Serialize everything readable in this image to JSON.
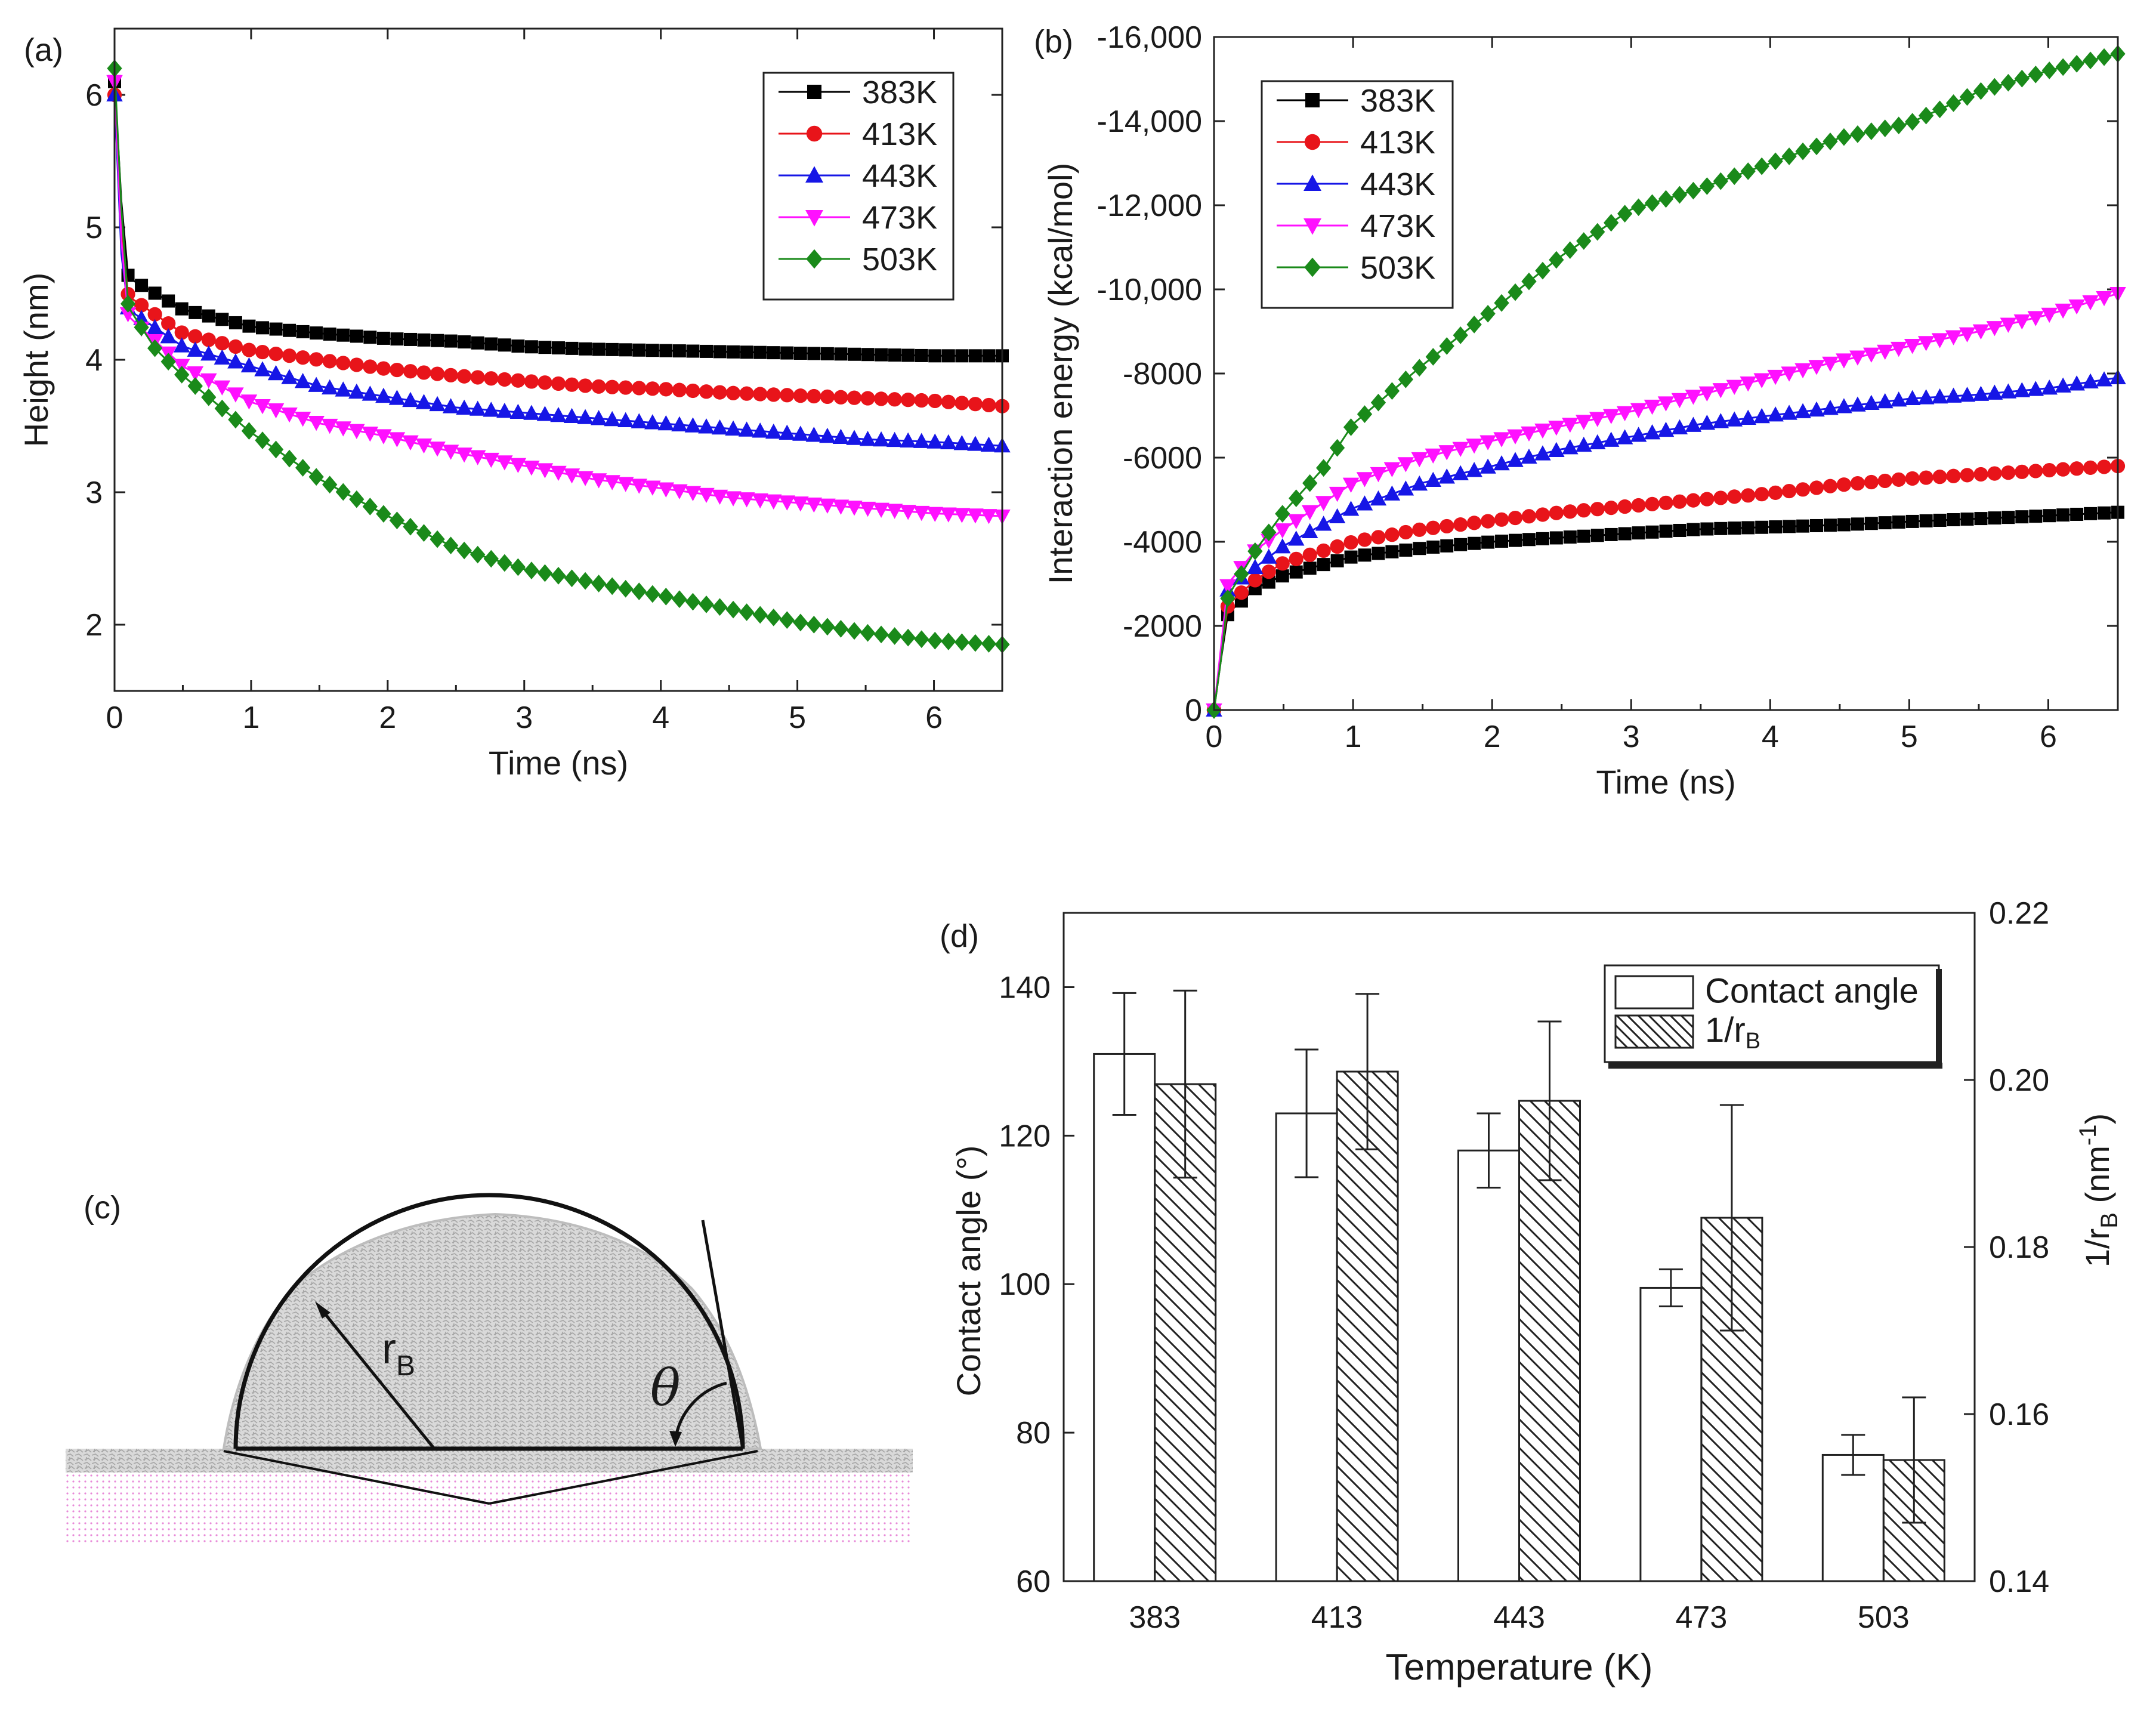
{
  "chart_data": [
    {
      "id": "a",
      "type": "line",
      "panel_label": "(a)",
      "xlabel": "Time (ns)",
      "ylabel": "Height (nm)",
      "xlim": [
        0,
        6.5
      ],
      "ylim": [
        1.5,
        6.5
      ],
      "xticks": [
        0,
        1,
        2,
        3,
        4,
        5,
        6
      ],
      "yticks": [
        2,
        3,
        4,
        5,
        6
      ],
      "legend": [
        "383K",
        "413K",
        "443K",
        "473K",
        "503K"
      ],
      "series": [
        {
          "name": "383K",
          "color": "#000000",
          "marker": "square",
          "x": [
            0,
            0.05,
            0.1,
            0.5,
            1,
            1.5,
            2,
            2.5,
            3,
            3.5,
            4,
            4.5,
            5,
            5.5,
            6,
            6.5
          ],
          "y": [
            6.1,
            5.2,
            4.62,
            4.38,
            4.25,
            4.2,
            4.16,
            4.14,
            4.1,
            4.08,
            4.07,
            4.06,
            4.05,
            4.04,
            4.03,
            4.03
          ]
        },
        {
          "name": "413K",
          "color": "#e8141a",
          "marker": "circle",
          "x": [
            0,
            0.05,
            0.1,
            0.5,
            1,
            1.5,
            2,
            2.5,
            3,
            3.5,
            4,
            4.5,
            5,
            5.5,
            6,
            6.5
          ],
          "y": [
            6.0,
            5.0,
            4.48,
            4.2,
            4.07,
            4.0,
            3.93,
            3.88,
            3.84,
            3.8,
            3.78,
            3.75,
            3.73,
            3.71,
            3.69,
            3.65
          ]
        },
        {
          "name": "443K",
          "color": "#1616e6",
          "marker": "triangle-up",
          "x": [
            0,
            0.05,
            0.1,
            0.5,
            1,
            1.5,
            2,
            2.5,
            3,
            3.5,
            4,
            4.5,
            5,
            5.5,
            6,
            6.5
          ],
          "y": [
            6.0,
            4.8,
            4.38,
            4.1,
            3.95,
            3.8,
            3.72,
            3.64,
            3.6,
            3.56,
            3.52,
            3.48,
            3.44,
            3.4,
            3.38,
            3.35
          ]
        },
        {
          "name": "473K",
          "color": "#ff10ff",
          "marker": "triangle-down",
          "x": [
            0,
            0.05,
            0.1,
            0.5,
            1,
            1.5,
            2,
            2.5,
            3,
            3.5,
            4,
            4.5,
            5,
            5.5,
            6,
            6.5
          ],
          "y": [
            6.1,
            4.9,
            4.33,
            3.95,
            3.68,
            3.52,
            3.42,
            3.3,
            3.2,
            3.1,
            3.03,
            2.96,
            2.92,
            2.88,
            2.84,
            2.82
          ]
        },
        {
          "name": "503K",
          "color": "#1a8a1a",
          "marker": "diamond",
          "x": [
            0,
            0.05,
            0.1,
            0.3,
            0.5,
            1,
            1.5,
            2,
            2.5,
            3,
            3.5,
            4,
            4.5,
            5,
            5.5,
            6,
            6.5
          ],
          "y": [
            6.2,
            5.15,
            4.4,
            4.08,
            3.88,
            3.45,
            3.1,
            2.82,
            2.58,
            2.42,
            2.32,
            2.22,
            2.12,
            2.02,
            1.94,
            1.88,
            1.85
          ]
        }
      ]
    },
    {
      "id": "b",
      "type": "line",
      "panel_label": "(b)",
      "xlabel": "Time (ns)",
      "ylabel": "Interaction energy (kcal/mol)",
      "xlim": [
        0,
        6.5
      ],
      "ylim": [
        0,
        -16000
      ],
      "xticks": [
        0,
        1,
        2,
        3,
        4,
        5,
        6
      ],
      "yticks": [
        0,
        -2000,
        -4000,
        -6000,
        -8000,
        -10000,
        -12000,
        -14000,
        -16000
      ],
      "ytick_labels": [
        "0",
        "-2000",
        "-4000",
        "-6000",
        "-8000",
        "-10,000",
        "-12,000",
        "-14,000",
        "-16,000"
      ],
      "legend": [
        "383K",
        "413K",
        "443K",
        "473K",
        "503K"
      ],
      "series": [
        {
          "name": "383K",
          "color": "#000000",
          "marker": "square",
          "x": [
            0,
            0.05,
            0.1,
            0.3,
            0.5,
            1,
            1.5,
            2,
            2.5,
            3,
            3.5,
            4,
            4.5,
            5,
            5.5,
            6,
            6.5
          ],
          "y": [
            0,
            -1200,
            -2300,
            -2900,
            -3200,
            -3650,
            -3850,
            -4000,
            -4100,
            -4200,
            -4300,
            -4350,
            -4400,
            -4480,
            -4550,
            -4620,
            -4700
          ]
        },
        {
          "name": "413K",
          "color": "#e8141a",
          "marker": "circle",
          "x": [
            0,
            0.05,
            0.1,
            0.3,
            0.5,
            1,
            1.5,
            2,
            2.5,
            3,
            3.5,
            4,
            4.5,
            5,
            5.5,
            6,
            6.5
          ],
          "y": [
            0,
            -1300,
            -2500,
            -3100,
            -3500,
            -4000,
            -4300,
            -4500,
            -4700,
            -4850,
            -5000,
            -5150,
            -5350,
            -5500,
            -5600,
            -5700,
            -5800
          ]
        },
        {
          "name": "443K",
          "color": "#1616e6",
          "marker": "triangle-up",
          "x": [
            0,
            0.05,
            0.1,
            0.3,
            0.5,
            1,
            1.5,
            2,
            2.5,
            3,
            3.5,
            4,
            4.5,
            5,
            5.5,
            6,
            6.5
          ],
          "y": [
            0,
            -1400,
            -2900,
            -3400,
            -3900,
            -4800,
            -5400,
            -5800,
            -6200,
            -6500,
            -6800,
            -7000,
            -7200,
            -7400,
            -7500,
            -7650,
            -7900
          ]
        },
        {
          "name": "473K",
          "color": "#ff10ff",
          "marker": "triangle-down",
          "x": [
            0,
            0.05,
            0.1,
            0.3,
            0.5,
            1,
            1.5,
            2,
            2.5,
            3,
            3.5,
            4,
            4.5,
            5,
            5.5,
            6,
            6.5
          ],
          "y": [
            0,
            -1500,
            -3000,
            -3800,
            -4300,
            -5400,
            -6000,
            -6400,
            -6750,
            -7100,
            -7500,
            -7900,
            -8300,
            -8650,
            -9000,
            -9400,
            -9900
          ]
        },
        {
          "name": "503K",
          "color": "#1a8a1a",
          "marker": "diamond",
          "x": [
            0,
            0.05,
            0.1,
            0.3,
            0.5,
            0.8,
            1,
            1.5,
            2,
            2.5,
            3,
            3.5,
            4,
            4.5,
            5,
            5.5,
            6,
            6.5
          ],
          "y": [
            0,
            -1200,
            -2700,
            -3800,
            -4700,
            -5800,
            -6800,
            -8200,
            -9500,
            -10800,
            -11900,
            -12400,
            -13000,
            -13600,
            -13950,
            -14700,
            -15200,
            -15600
          ]
        }
      ]
    },
    {
      "id": "d",
      "type": "bar",
      "panel_label": "(d)",
      "xlabel": "Temperature (K)",
      "ylabel": "Contact angle (°)",
      "ylabel2_main": "1/r",
      "ylabel2_sub": "B",
      "ylabel2_unit_pre": " (nm",
      "ylabel2_sup": "-1",
      "ylabel2_unit_post": ")",
      "categories": [
        "383",
        "413",
        "443",
        "473",
        "503"
      ],
      "ylim": [
        60,
        150
      ],
      "yticks": [
        60,
        80,
        100,
        120,
        140
      ],
      "y2lim": [
        0.14,
        0.22
      ],
      "y2ticks": [
        "0.14",
        "0.16",
        "0.18",
        "0.20",
        "0.22"
      ],
      "legend": {
        "contact_angle": "Contact angle",
        "inv_rb_main": "1/r",
        "inv_rb_sub": "B"
      },
      "series": [
        {
          "name": "Contact angle",
          "axis": "left",
          "fill": "none",
          "values": [
            131,
            123,
            118,
            99.5,
            77
          ],
          "errors": [
            8.2,
            8.6,
            5.0,
            2.5,
            2.7
          ]
        },
        {
          "name": "1/rB",
          "axis": "right",
          "fill": "hatch",
          "values": [
            0.1995,
            0.201,
            0.1975,
            0.1835,
            0.1545
          ],
          "errors": [
            0.0112,
            0.0093,
            0.0095,
            0.0135,
            0.0075
          ]
        }
      ]
    }
  ],
  "schematic_c": {
    "panel_label": "(c)",
    "radius_label_main": "r",
    "radius_label_sub": "B",
    "angle_label": "θ"
  }
}
